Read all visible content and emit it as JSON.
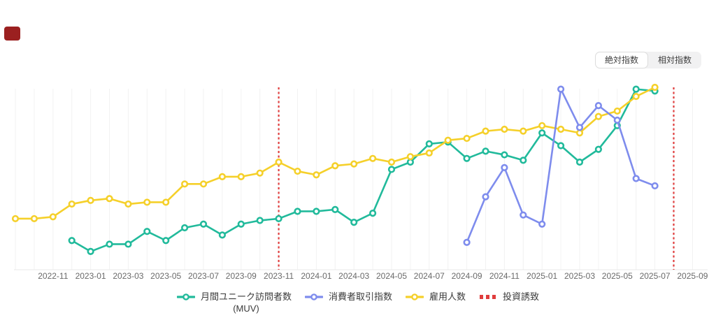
{
  "view_toggle": {
    "options": [
      {
        "label": "絶対指数",
        "active": true
      },
      {
        "label": "相対指数",
        "active": false
      }
    ]
  },
  "colors": {
    "muv": "#21ba9b",
    "consumer_index": "#7e8ced",
    "employment": "#f5d02a",
    "event_line": "#e03d3d",
    "grid": "#f2f2f2",
    "axis": "#e8e8e8",
    "tick_label": "#6a6a6a",
    "legend_text": "#3a3a3a"
  },
  "chart_data": {
    "type": "line",
    "x_start_month": "2022-09",
    "x_tick_labels": [
      "2022-11",
      "2023-01",
      "2023-03",
      "2023-05",
      "2023-07",
      "2023-09",
      "2023-11",
      "2024-01",
      "2024-03",
      "2024-05",
      "2024-07",
      "2024-09",
      "2024-11",
      "2025-01",
      "2025-03",
      "2025-05",
      "2025-07",
      "2025-09"
    ],
    "x_tick_month_indices": [
      2,
      4,
      6,
      8,
      10,
      12,
      14,
      16,
      18,
      20,
      22,
      24,
      26,
      28,
      30,
      32,
      34,
      36
    ],
    "grid_month_count": 37,
    "ylim": [
      0,
      100
    ],
    "y_axis_labels_visible": false,
    "legend_position": "bottom-center",
    "series": [
      {
        "name": "月間ユニーク訪問者数 (MUV)",
        "color_key": "muv",
        "start_month": "2022-12",
        "start_month_index": 3,
        "layer": 1,
        "values": [
          16,
          10,
          14,
          14,
          21,
          16,
          23,
          25,
          19,
          25,
          27,
          28,
          32,
          32,
          33,
          26,
          31,
          55,
          59,
          69,
          70,
          61,
          65,
          63,
          60,
          75,
          68,
          59,
          66,
          79,
          99,
          98
        ]
      },
      {
        "name": "消費者取引指数",
        "color_key": "consumer_index",
        "start_month": "2024-09",
        "start_month_index": 24,
        "layer": 3,
        "values": [
          15,
          40,
          56,
          30,
          25,
          99,
          78,
          90,
          82,
          50,
          46
        ]
      },
      {
        "name": "雇用人数",
        "color_key": "employment",
        "start_month": "2022-09",
        "start_month_index": 0,
        "layer": 2,
        "values": [
          28,
          28,
          29,
          36,
          38,
          39,
          36,
          37,
          37,
          47,
          47,
          51,
          51,
          53,
          59,
          54,
          52,
          57,
          58,
          61,
          59,
          62,
          64,
          71,
          72,
          76,
          77,
          76,
          79,
          77,
          75,
          84,
          87,
          95,
          100
        ]
      }
    ],
    "events": [
      {
        "label": "投資誘致",
        "month": "2023-11",
        "month_index": 14
      },
      {
        "label": "投資誘致",
        "month": "2025-08",
        "month_index": 35
      }
    ],
    "legend": {
      "items": [
        {
          "label": "月間ユニーク訪問者数",
          "label2": "(MUV)",
          "swatch": "line-marker",
          "color_key": "muv"
        },
        {
          "label": "消費者取引指数",
          "label2": "",
          "swatch": "line-marker",
          "color_key": "consumer_index"
        },
        {
          "label": "雇用人数",
          "label2": "",
          "swatch": "line-marker",
          "color_key": "employment"
        },
        {
          "label": "投資誘致",
          "label2": "",
          "swatch": "dashed",
          "color_key": "event_line"
        }
      ]
    }
  }
}
